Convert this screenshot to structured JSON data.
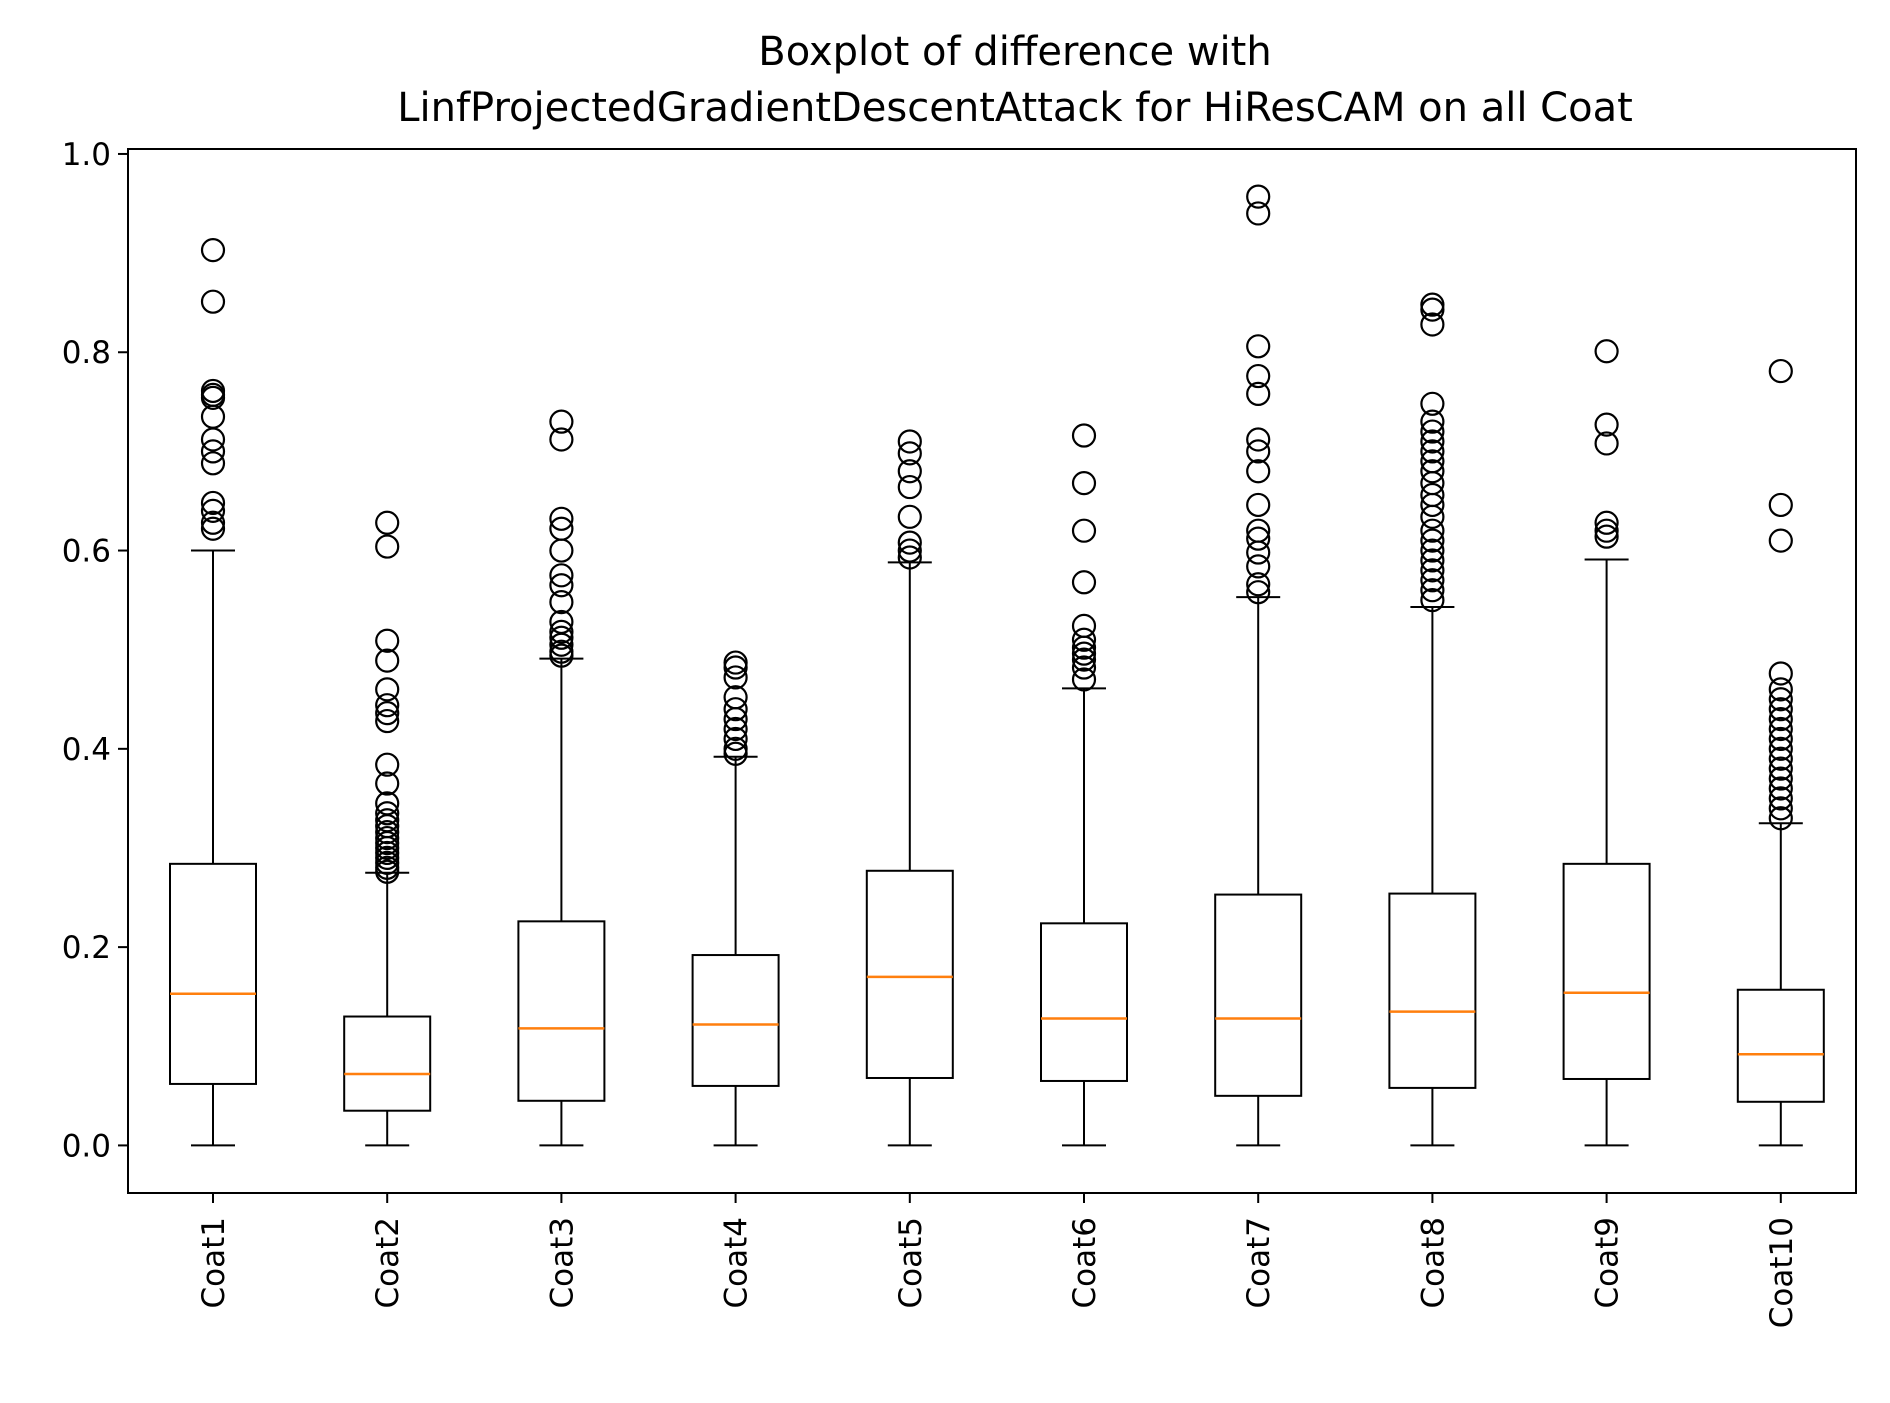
{
  "chart_data": {
    "type": "boxplot",
    "title_lines": [
      "Boxplot of difference with",
      "LinfProjectedGradientDescentAttack for HiResCAM on all Coat"
    ],
    "xlabel": "",
    "ylabel": "",
    "ylim": [
      -0.048,
      1.005
    ],
    "yticks": [
      0.0,
      0.2,
      0.4,
      0.6,
      0.8,
      1.0
    ],
    "ytick_labels": [
      "0.0",
      "0.2",
      "0.4",
      "0.6",
      "0.8",
      "1.0"
    ],
    "grid": false,
    "colors": {
      "box": "#000000",
      "median": "#ff7f0e",
      "flier": "#000000"
    },
    "categories": [
      "Coat1",
      "Coat2",
      "Coat3",
      "Coat4",
      "Coat5",
      "Coat6",
      "Coat7",
      "Coat8",
      "Coat9",
      "Coat10"
    ],
    "boxes": [
      {
        "label": "Coat1",
        "whislo": 0.0,
        "q1": 0.062,
        "med": 0.153,
        "q3": 0.284,
        "whishi": 0.6,
        "fliers": [
          0.903,
          0.851,
          0.761,
          0.757,
          0.754,
          0.735,
          0.712,
          0.7,
          0.688,
          0.648,
          0.64,
          0.628,
          0.622
        ]
      },
      {
        "label": "Coat2",
        "whislo": 0.0,
        "q1": 0.035,
        "med": 0.072,
        "q3": 0.13,
        "whishi": 0.275,
        "fliers": [
          0.628,
          0.604,
          0.509,
          0.489,
          0.46,
          0.444,
          0.436,
          0.428,
          0.384,
          0.365,
          0.345,
          0.335,
          0.328,
          0.322,
          0.316,
          0.31,
          0.305,
          0.3,
          0.295,
          0.29,
          0.285,
          0.28,
          0.276
        ]
      },
      {
        "label": "Coat3",
        "whislo": 0.0,
        "q1": 0.045,
        "med": 0.118,
        "q3": 0.226,
        "whishi": 0.491,
        "fliers": [
          0.73,
          0.712,
          0.632,
          0.622,
          0.6,
          0.575,
          0.565,
          0.548,
          0.528,
          0.518,
          0.512,
          0.505,
          0.498,
          0.494
        ]
      },
      {
        "label": "Coat4",
        "whislo": 0.0,
        "q1": 0.06,
        "med": 0.122,
        "q3": 0.192,
        "whishi": 0.392,
        "fliers": [
          0.487,
          0.482,
          0.472,
          0.452,
          0.44,
          0.43,
          0.42,
          0.41,
          0.4,
          0.395
        ]
      },
      {
        "label": "Coat5",
        "whislo": 0.0,
        "q1": 0.068,
        "med": 0.17,
        "q3": 0.277,
        "whishi": 0.588,
        "fliers": [
          0.71,
          0.698,
          0.68,
          0.664,
          0.634,
          0.608,
          0.6,
          0.593
        ]
      },
      {
        "label": "Coat6",
        "whislo": 0.0,
        "q1": 0.065,
        "med": 0.128,
        "q3": 0.224,
        "whishi": 0.461,
        "fliers": [
          0.716,
          0.668,
          0.62,
          0.568,
          0.524,
          0.51,
          0.502,
          0.496,
          0.49,
          0.482,
          0.47
        ]
      },
      {
        "label": "Coat7",
        "whislo": 0.0,
        "q1": 0.05,
        "med": 0.128,
        "q3": 0.253,
        "whishi": 0.553,
        "fliers": [
          0.957,
          0.94,
          0.806,
          0.776,
          0.758,
          0.712,
          0.7,
          0.68,
          0.646,
          0.62,
          0.612,
          0.598,
          0.584,
          0.566,
          0.558
        ]
      },
      {
        "label": "Coat8",
        "whislo": 0.0,
        "q1": 0.058,
        "med": 0.135,
        "q3": 0.254,
        "whishi": 0.543,
        "fliers": [
          0.848,
          0.843,
          0.828,
          0.748,
          0.73,
          0.72,
          0.71,
          0.7,
          0.69,
          0.68,
          0.668,
          0.656,
          0.646,
          0.634,
          0.62,
          0.61,
          0.6,
          0.59,
          0.58,
          0.57,
          0.56,
          0.55
        ]
      },
      {
        "label": "Coat9",
        "whislo": 0.0,
        "q1": 0.067,
        "med": 0.154,
        "q3": 0.284,
        "whishi": 0.591,
        "fliers": [
          0.801,
          0.727,
          0.708,
          0.628,
          0.62,
          0.614
        ]
      },
      {
        "label": "Coat10",
        "whislo": 0.0,
        "q1": 0.044,
        "med": 0.092,
        "q3": 0.157,
        "whishi": 0.325,
        "fliers": [
          0.781,
          0.646,
          0.61,
          0.476,
          0.46,
          0.45,
          0.44,
          0.43,
          0.42,
          0.41,
          0.4,
          0.39,
          0.38,
          0.37,
          0.36,
          0.35,
          0.34,
          0.33
        ]
      }
    ]
  }
}
